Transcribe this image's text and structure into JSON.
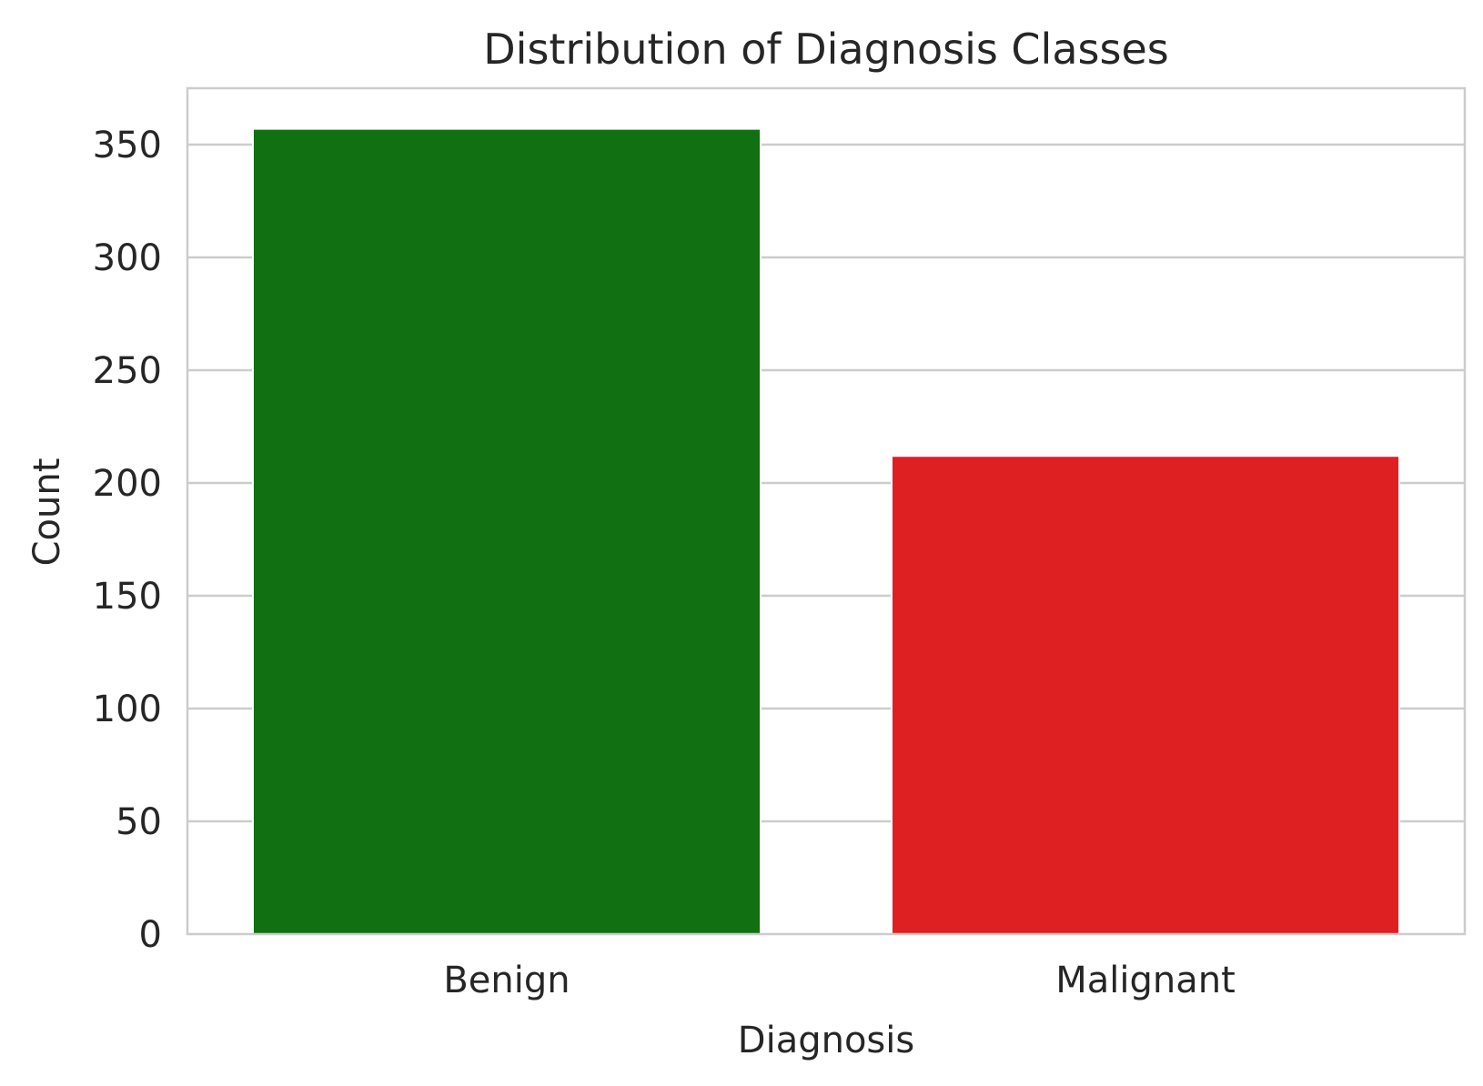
{
  "chart_data": {
    "type": "bar",
    "title": "Distribution of Diagnosis Classes",
    "xlabel": "Diagnosis",
    "ylabel": "Count",
    "categories": [
      "Benign",
      "Malignant"
    ],
    "values": [
      357,
      212
    ],
    "ylim": [
      0,
      375
    ],
    "yticks": [
      0,
      50,
      100,
      150,
      200,
      250,
      300,
      350
    ],
    "grid": "horizontal",
    "colors": {
      "Benign": "#107012",
      "Malignant": "#df2023",
      "grid": "#cccccc",
      "spine": "#cccccc"
    }
  }
}
